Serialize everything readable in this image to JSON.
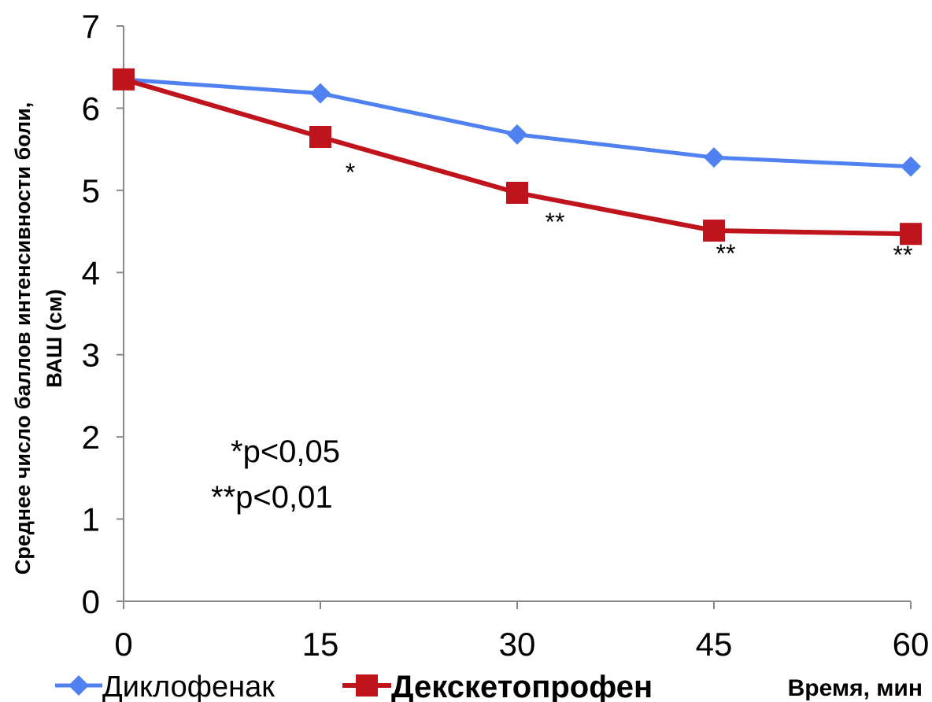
{
  "chart_data": {
    "type": "line",
    "x": [
      0,
      15,
      30,
      45,
      60
    ],
    "x_tick_labels": [
      "0",
      "15",
      "30",
      "45",
      "60"
    ],
    "ylim": [
      0,
      7
    ],
    "y_ticks": [
      0,
      1,
      2,
      3,
      4,
      5,
      6,
      7
    ],
    "y_tick_labels": [
      "0",
      "1",
      "2",
      "3",
      "4",
      "5",
      "6",
      "7"
    ],
    "ylabel_line1": "Среднее число баллов интенсивности боли,",
    "ylabel_line2": "ВАШ (см)",
    "xlabel": "Время, мин",
    "grid": false,
    "legend_position": "bottom",
    "series": [
      {
        "name": "Диклофенак",
        "color": "#4F81F0",
        "marker": "diamond",
        "values": [
          6.35,
          6.18,
          5.68,
          5.4,
          5.29
        ]
      },
      {
        "name": "Декскетопрофен",
        "color": "#C0141C",
        "marker": "square",
        "values": [
          6.35,
          5.65,
          4.97,
          4.51,
          4.47
        ]
      }
    ],
    "annotations": [
      {
        "x": 15,
        "text": "*"
      },
      {
        "x": 30,
        "text": "**"
      },
      {
        "x": 45,
        "text": "**"
      },
      {
        "x": 60,
        "text": "**"
      }
    ],
    "notes": [
      "*p<0,05",
      "**p<0,01"
    ]
  }
}
